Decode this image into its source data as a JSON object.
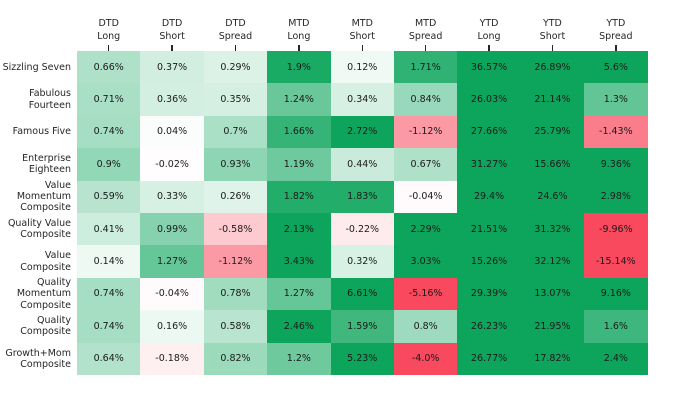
{
  "chart_data": {
    "type": "heatmap",
    "title": "",
    "legend_position": "none",
    "grid": "off",
    "columns": [
      "DTD\nLong",
      "DTD\nShort",
      "DTD\nSpread",
      "MTD\nLong",
      "MTD\nShort",
      "MTD\nSpread",
      "YTD\nLong",
      "YTD\nShort",
      "YTD\nSpread"
    ],
    "rows": [
      "Sizzling Seven",
      "Fabulous Fourteen",
      "Famous Five",
      "Enterprise Eighteen",
      "Value Momentum Composite",
      "Quality Value Composite",
      "Value Composite",
      "Quality Momentum Composite",
      "Quality Composite",
      "Growth+Mom Composite"
    ],
    "values": [
      [
        0.66,
        0.37,
        0.29,
        1.9,
        0.12,
        1.71,
        36.57,
        26.89,
        5.6
      ],
      [
        0.71,
        0.36,
        0.35,
        1.24,
        0.34,
        0.84,
        26.03,
        21.14,
        1.3
      ],
      [
        0.74,
        0.04,
        0.7,
        1.66,
        2.72,
        -1.12,
        27.66,
        25.79,
        -1.43
      ],
      [
        0.9,
        -0.02,
        0.93,
        1.19,
        0.44,
        0.67,
        31.27,
        15.66,
        9.36
      ],
      [
        0.59,
        0.33,
        0.26,
        1.82,
        1.83,
        -0.04,
        29.4,
        24.6,
        2.98
      ],
      [
        0.41,
        0.99,
        -0.58,
        2.13,
        -0.22,
        2.29,
        21.51,
        31.32,
        -9.96
      ],
      [
        0.14,
        1.27,
        -1.12,
        3.43,
        0.32,
        3.03,
        15.26,
        32.12,
        -15.14
      ],
      [
        0.74,
        -0.04,
        0.78,
        1.27,
        6.61,
        -5.16,
        29.39,
        13.07,
        9.16
      ],
      [
        0.74,
        0.16,
        0.58,
        2.46,
        1.59,
        0.8,
        26.23,
        21.95,
        1.6
      ],
      [
        0.64,
        -0.18,
        0.82,
        1.2,
        5.23,
        -4.0,
        26.77,
        17.82,
        2.4
      ]
    ],
    "cell_labels": [
      [
        "0.66%",
        "0.37%",
        "0.29%",
        "1.9%",
        "0.12%",
        "1.71%",
        "36.57%",
        "26.89%",
        "5.6%"
      ],
      [
        "0.71%",
        "0.36%",
        "0.35%",
        "1.24%",
        "0.34%",
        "0.84%",
        "26.03%",
        "21.14%",
        "1.3%"
      ],
      [
        "0.74%",
        "0.04%",
        "0.7%",
        "1.66%",
        "2.72%",
        "-1.12%",
        "27.66%",
        "25.79%",
        "-1.43%"
      ],
      [
        "0.9%",
        "-0.02%",
        "0.93%",
        "1.19%",
        "0.44%",
        "0.67%",
        "31.27%",
        "15.66%",
        "9.36%"
      ],
      [
        "0.59%",
        "0.33%",
        "0.26%",
        "1.82%",
        "1.83%",
        "-0.04%",
        "29.4%",
        "24.6%",
        "2.98%"
      ],
      [
        "0.41%",
        "0.99%",
        "-0.58%",
        "2.13%",
        "-0.22%",
        "2.29%",
        "21.51%",
        "31.32%",
        "-9.96%"
      ],
      [
        "0.14%",
        "1.27%",
        "-1.12%",
        "3.43%",
        "0.32%",
        "3.03%",
        "15.26%",
        "32.12%",
        "-15.14%"
      ],
      [
        "0.74%",
        "-0.04%",
        "0.78%",
        "1.27%",
        "6.61%",
        "-5.16%",
        "29.39%",
        "13.07%",
        "9.16%"
      ],
      [
        "0.74%",
        "0.16%",
        "0.58%",
        "2.46%",
        "1.59%",
        "0.8%",
        "26.23%",
        "21.95%",
        "1.6%"
      ],
      [
        "0.64%",
        "-0.18%",
        "0.82%",
        "1.2%",
        "5.23%",
        "-4.0%",
        "26.77%",
        "17.82%",
        "2.4%"
      ]
    ],
    "colorscale": {
      "negative_max_color": "#f8495e",
      "neutral_color": "#ffffff",
      "positive_max_color": "#0da55c",
      "cap_abs_percent": 2.0
    },
    "cell_text_color": "#1a1a1a",
    "axis_label_color": "#262626"
  }
}
